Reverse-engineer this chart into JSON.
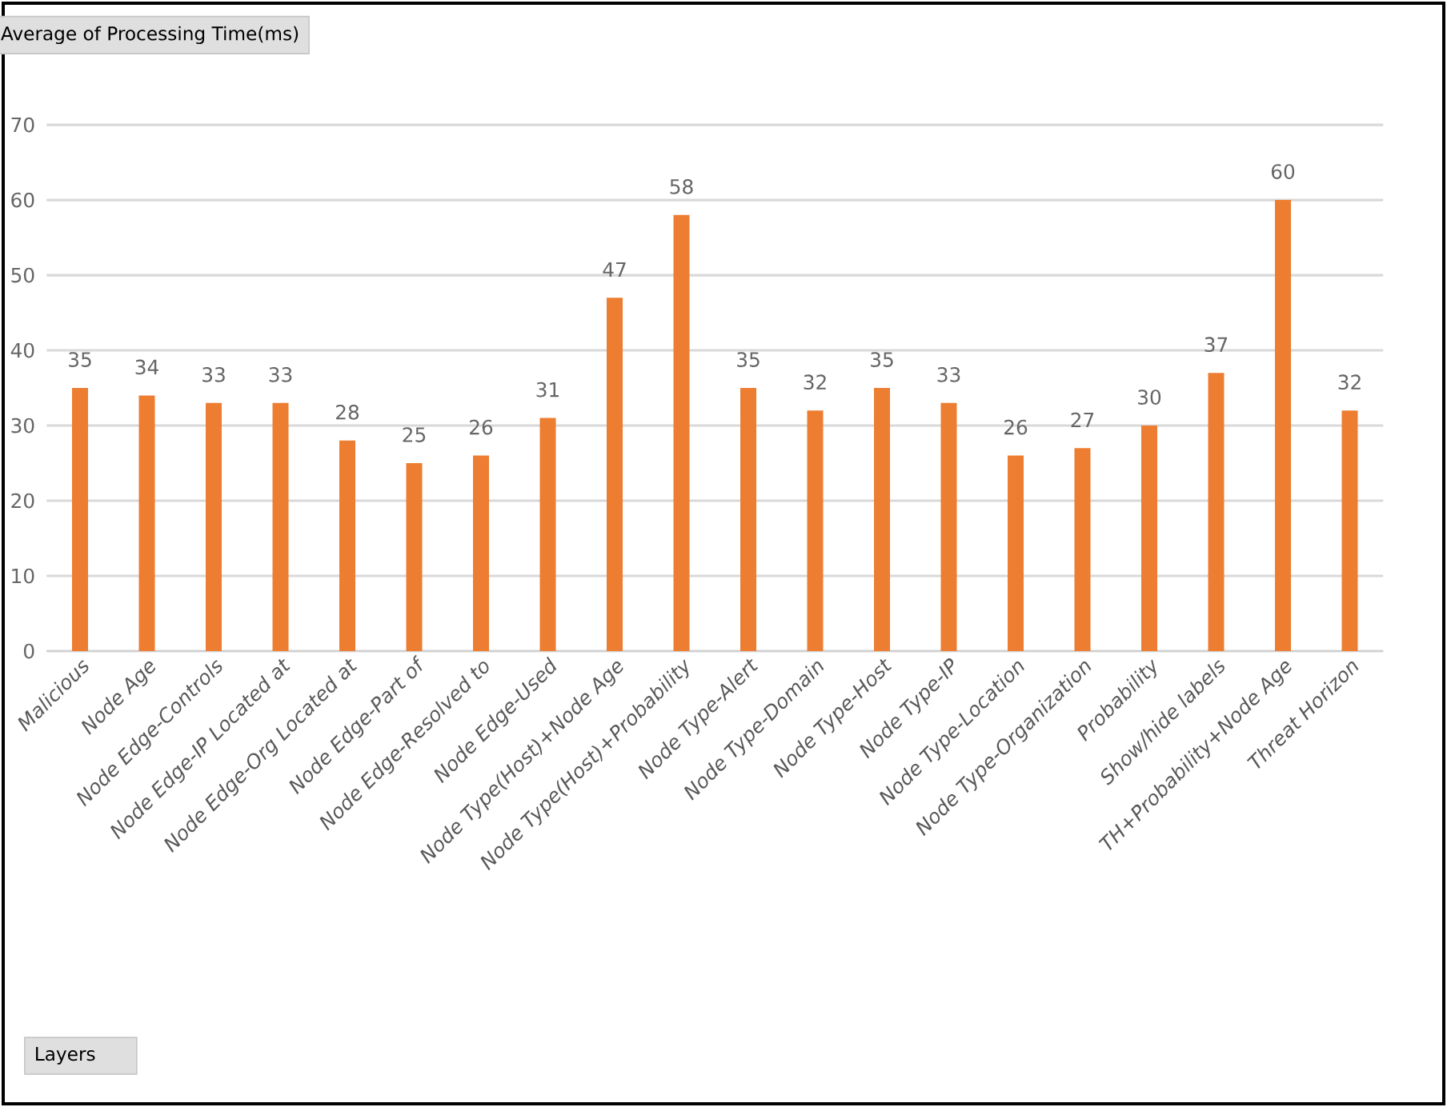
{
  "chart_data": {
    "type": "bar",
    "title": "Average of Processing Time(ms)",
    "annotations": [
      "Layers"
    ],
    "categories": [
      "Malicious",
      "Node Age",
      "Node Edge-Controls",
      "Node Edge-IP Located at",
      "Node Edge-Org Located at",
      "Node Edge-Part of",
      "Node Edge-Resolved to",
      "Node Edge-Used",
      "Node Type(Host)+Node Age",
      "Node Type(Host)+Probability",
      "Node Type-Alert",
      "Node Type-Domain",
      "Node Type-Host",
      "Node Type-IP",
      "Node Type-Location",
      "Node Type-Organization",
      "Probability",
      "Show/hide labels",
      "TH+Probability+Node Age",
      "Threat Horizon"
    ],
    "values": [
      35,
      34,
      33,
      33,
      28,
      25,
      26,
      31,
      47,
      58,
      35,
      32,
      35,
      33,
      26,
      27,
      30,
      37,
      60,
      32
    ],
    "color": "#ed7d31",
    "ylim": [
      0,
      70
    ],
    "yticks": [
      0,
      10,
      20,
      30,
      40,
      50,
      60,
      70
    ],
    "grid": "y",
    "data_labels": true
  }
}
